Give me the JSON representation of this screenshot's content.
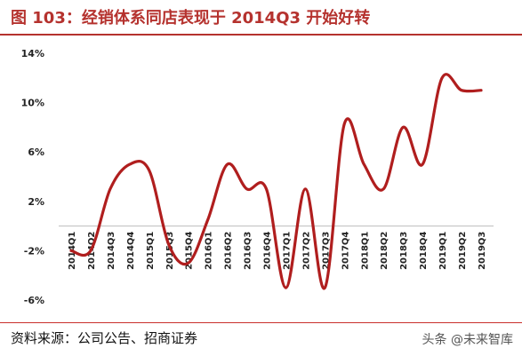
{
  "title": "图 103：经销体系同店表现于 2014Q3 开始好转",
  "source": "资料来源：公司公告、招商证券",
  "watermark": "头条 @未来智库",
  "chart_data": {
    "type": "line",
    "title": "",
    "xlabel": "",
    "ylabel": "",
    "ylim": [
      -6,
      14
    ],
    "y_ticks": [
      -6,
      -2,
      2,
      6,
      10,
      14
    ],
    "y_tick_labels": [
      "-6%",
      "-2%",
      "2%",
      "6%",
      "10%",
      "14%"
    ],
    "categories": [
      "2014Q1",
      "2014Q2",
      "2014Q3",
      "2014Q4",
      "2015Q1",
      "2015Q3",
      "2015Q4",
      "2016Q1",
      "2016Q2",
      "2016Q3",
      "2016Q4",
      "2017Q1",
      "2017Q2",
      "2017Q3",
      "2017Q4",
      "2018Q1",
      "2018Q2",
      "2018Q3",
      "2018Q4",
      "2019Q1",
      "2019Q2",
      "2019Q3"
    ],
    "series": [
      {
        "values": [
          -2,
          -2,
          3,
          5,
          4.5,
          -1.5,
          -3,
          0.5,
          5,
          3,
          3,
          -5,
          3,
          -5,
          8.3,
          5,
          3,
          8,
          5,
          12,
          11,
          11
        ]
      }
    ],
    "line_color": "#b01e1e",
    "grid": false,
    "legend": "none"
  }
}
